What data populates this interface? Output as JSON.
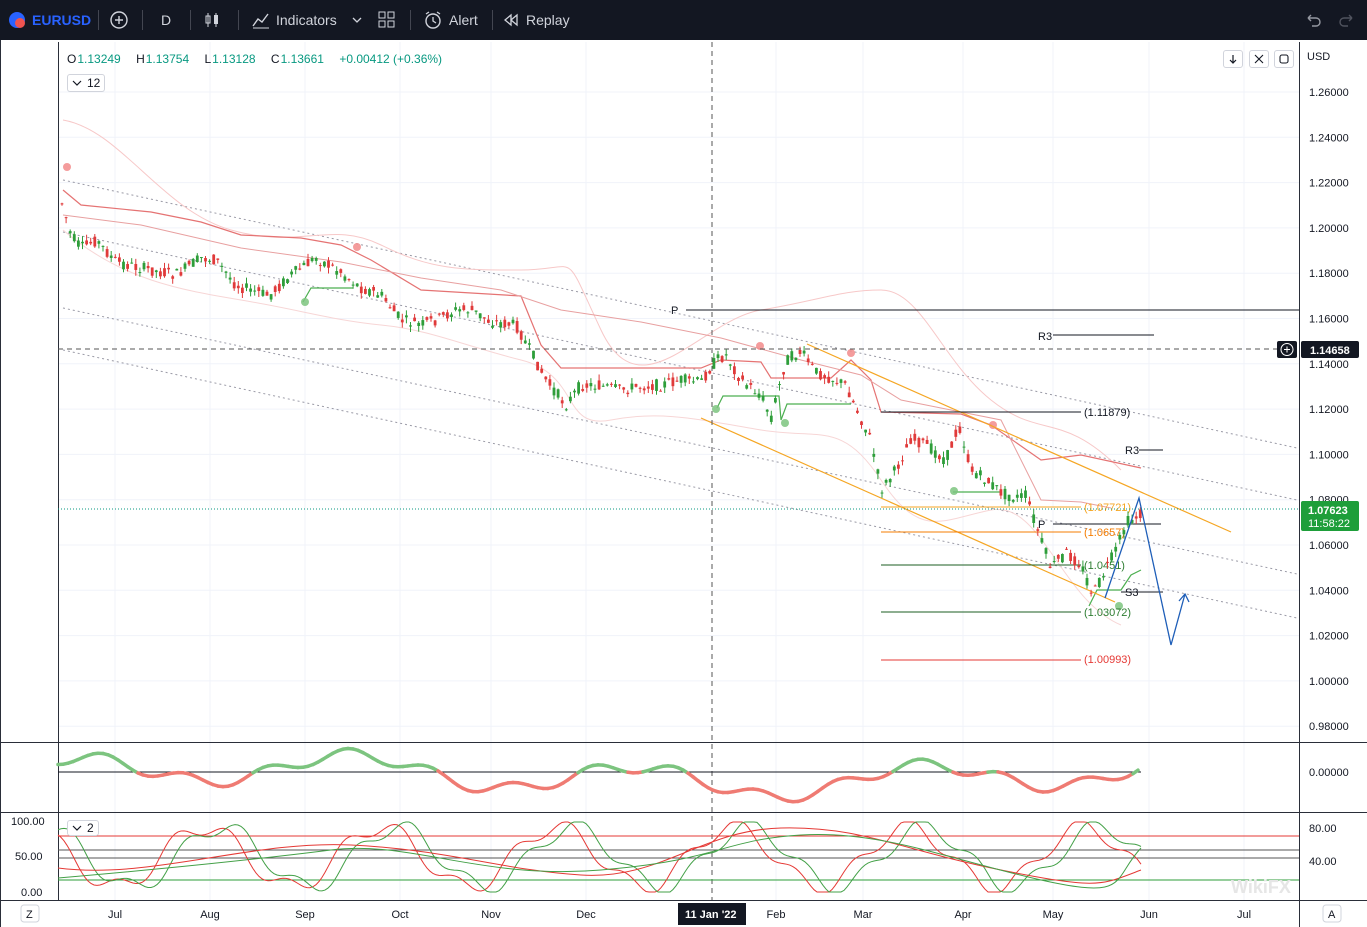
{
  "toolbar": {
    "symbol": "EURUSD",
    "interval": "D",
    "indicators_label": "Indicators",
    "alert_label": "Alert",
    "replay_label": "Replay"
  },
  "legend": {
    "o_label": "O",
    "o": "1.13249",
    "h_label": "H",
    "h": "1.13754",
    "l_label": "L",
    "l": "1.13128",
    "c_label": "C",
    "c": "1.13661",
    "change": "+0.00412 (+0.36%)",
    "indicator_param": "12",
    "oscillator_param": "2"
  },
  "price_axis": {
    "currency": "USD",
    "ticks": [
      "1.26000",
      "1.24000",
      "1.22000",
      "1.20000",
      "1.18000",
      "1.16000",
      "1.14000",
      "1.12000",
      "1.10000",
      "1.08000",
      "1.06000",
      "1.04000",
      "1.02000",
      "1.00000",
      "0.98000"
    ],
    "crosshair_price": "1.14658",
    "last_price": "1.07623",
    "countdown": "11:58:22"
  },
  "macd_axis": {
    "ticks": [
      "0.00000"
    ]
  },
  "osc_axis": {
    "left_ticks": [
      "100.00",
      "50.00",
      "0.00"
    ],
    "right_ticks": [
      "80.00",
      "40.00"
    ]
  },
  "time_axis": {
    "left_button": "Z",
    "right_button": "A",
    "months": [
      "Jul",
      "Aug",
      "Sep",
      "Oct",
      "Nov",
      "Dec",
      "Feb",
      "Mar",
      "Apr",
      "May",
      "Jun",
      "Jul"
    ],
    "crosshair_label": "11 Jan '22"
  },
  "levels": {
    "p_top": "P",
    "r3_top": "R3",
    "r3_mid": "R3",
    "p_mid": "P",
    "s3": "S3",
    "fib_1": "(1.11879)",
    "fib_2": "(1.07721)",
    "fib_3": "(1.0657)",
    "fib_4": "(1.0451)",
    "fib_5": "(1.03072)",
    "fib_6": "(1.00993)"
  },
  "colors": {
    "up": "#26a69a",
    "down": "#ef5350",
    "bull_candle": "#2e9e3a",
    "bear_candle": "#e03a3a",
    "accent": "#2962ff",
    "orange": "#f5a623"
  },
  "icons": [
    "plus-circle-icon",
    "candles-icon",
    "indicators-icon",
    "layout-icon",
    "alarm-icon",
    "replay-icon",
    "undo-icon",
    "redo-icon"
  ],
  "watermark": "WikiFX"
}
